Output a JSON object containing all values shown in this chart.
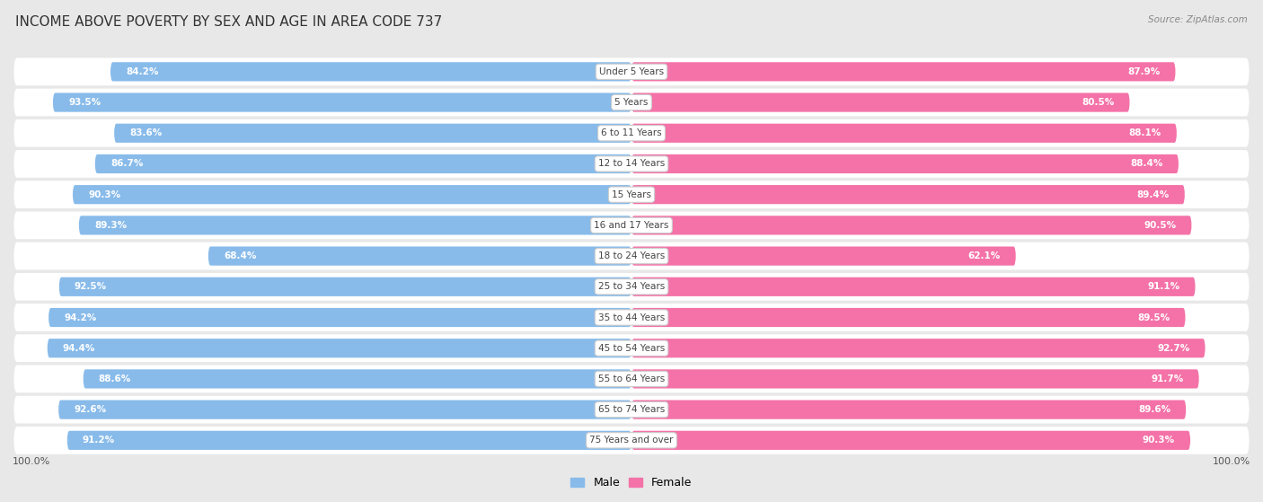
{
  "title": "INCOME ABOVE POVERTY BY SEX AND AGE IN AREA CODE 737",
  "source": "Source: ZipAtlas.com",
  "categories": [
    "Under 5 Years",
    "5 Years",
    "6 to 11 Years",
    "12 to 14 Years",
    "15 Years",
    "16 and 17 Years",
    "18 to 24 Years",
    "25 to 34 Years",
    "35 to 44 Years",
    "45 to 54 Years",
    "55 to 64 Years",
    "65 to 74 Years",
    "75 Years and over"
  ],
  "male_values": [
    84.2,
    93.5,
    83.6,
    86.7,
    90.3,
    89.3,
    68.4,
    92.5,
    94.2,
    94.4,
    88.6,
    92.6,
    91.2
  ],
  "female_values": [
    87.9,
    80.5,
    88.1,
    88.4,
    89.4,
    90.5,
    62.1,
    91.1,
    89.5,
    92.7,
    91.7,
    89.6,
    90.3
  ],
  "male_color": "#88BBEA",
  "female_color": "#F472A8",
  "bg_color": "#E8E8E8",
  "row_bg_color": "#F5F5F5",
  "title_fontsize": 11,
  "label_fontsize": 7.5,
  "value_fontsize": 7.5,
  "bar_height": 0.62,
  "max_val": 100.0,
  "source_fontsize": 7.5
}
